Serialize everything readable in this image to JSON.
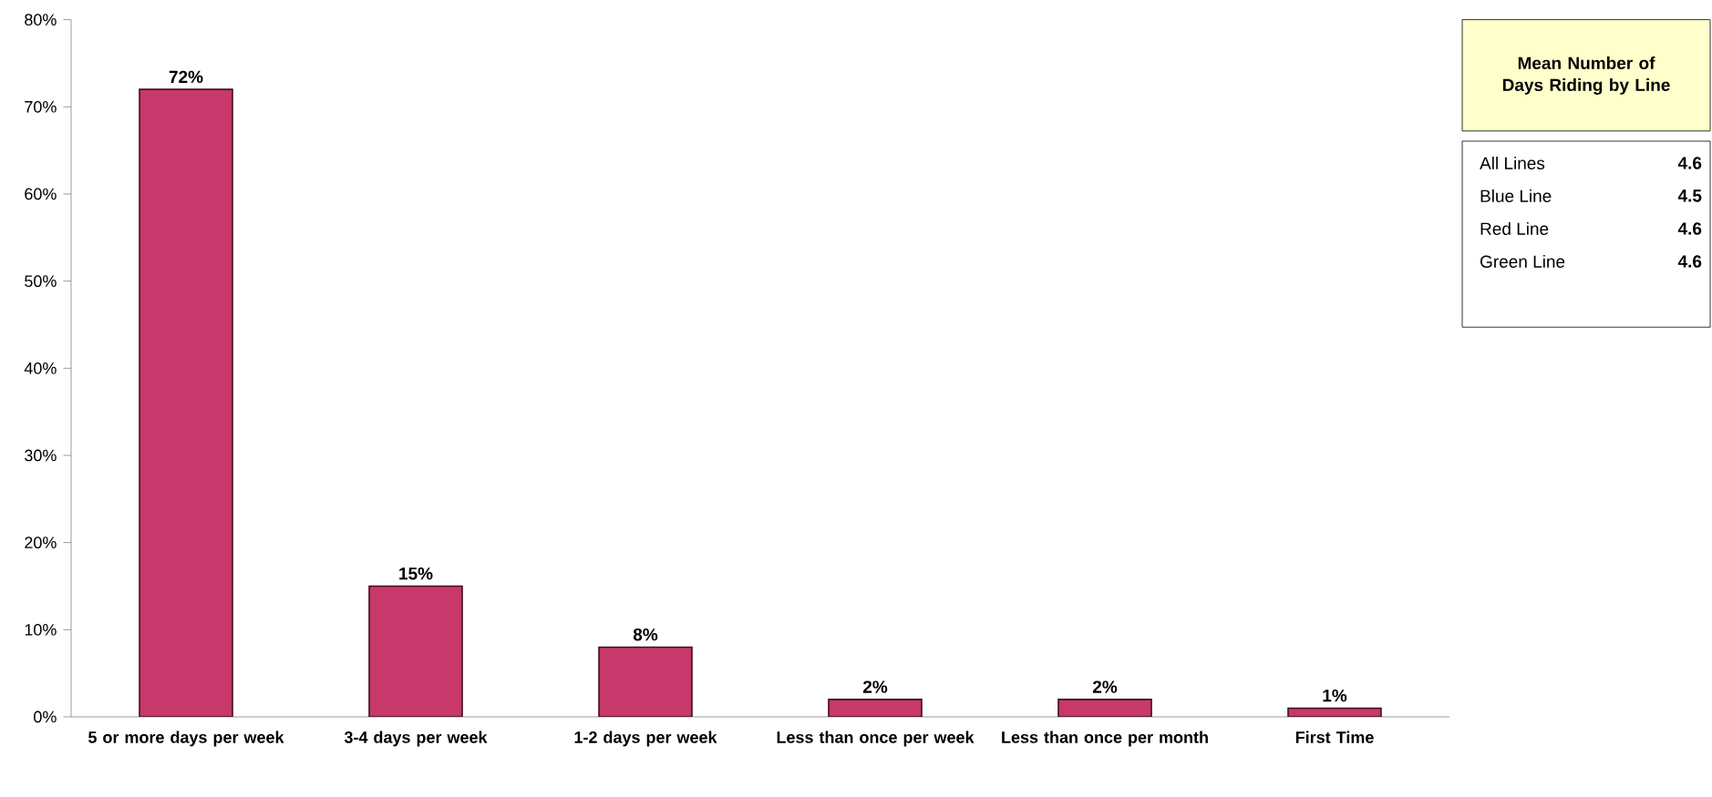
{
  "chart_data": {
    "type": "bar",
    "categories": [
      "5 or more days per week",
      "3-4 days per week",
      "1-2 days per week",
      "Less than once per week",
      "Less than once per month",
      "First Time"
    ],
    "values": [
      72,
      15,
      8,
      2,
      2,
      1
    ],
    "value_labels": [
      "72%",
      "15%",
      "8%",
      "2%",
      "2%",
      "1%"
    ],
    "color": "#c8386a",
    "ylim": [
      0,
      80
    ],
    "yticks": [
      {
        "value": 0,
        "label": "0%"
      },
      {
        "value": 10,
        "label": "10%"
      },
      {
        "value": 20,
        "label": "20%"
      },
      {
        "value": 30,
        "label": "30%"
      },
      {
        "value": 40,
        "label": "40%"
      },
      {
        "value": 50,
        "label": "50%"
      },
      {
        "value": 60,
        "label": "60%"
      },
      {
        "value": 70,
        "label": "70%"
      },
      {
        "value": 80,
        "label": "80%"
      }
    ],
    "annotations": [
      "Mean Number of Days Riding by Line",
      "All Lines",
      "4.6",
      "Blue Line",
      "4.5",
      "Red Line",
      "4.6",
      "Green Line",
      "4.6"
    ]
  }
}
